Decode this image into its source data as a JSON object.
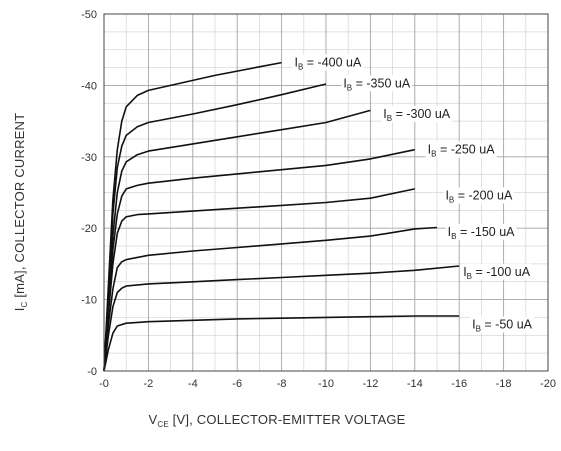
{
  "chart_data": {
    "type": "line",
    "xlabel": {
      "main": "V",
      "sub": "CE",
      "rest": " [V], COLLECTOR-EMITTER VOLTAGE"
    },
    "ylabel": {
      "main": "I",
      "sub": "C",
      "rest": " [mA], COLLECTOR CURRENT"
    },
    "xlim": [
      0,
      -20
    ],
    "ylim": [
      0,
      -50
    ],
    "x_ticks": [
      "-0",
      "-2",
      "-4",
      "-6",
      "-8",
      "-10",
      "-12",
      "-14",
      "-16",
      "-18",
      "-20"
    ],
    "y_ticks": [
      "-0",
      "-10",
      "-20",
      "-30",
      "-40",
      "-50"
    ],
    "grid": true,
    "series": [
      {
        "name": "I_B = -400 uA",
        "label_prefix": "I",
        "label_sub": "B",
        "label_rest": " = -400 uA",
        "label_at": [
          -8.4,
          -43.2
        ],
        "points": [
          [
            0,
            0
          ],
          [
            -0.2,
            -12
          ],
          [
            -0.4,
            -24
          ],
          [
            -0.6,
            -31
          ],
          [
            -0.8,
            -35
          ],
          [
            -1,
            -37
          ],
          [
            -1.5,
            -38.6
          ],
          [
            -2,
            -39.3
          ],
          [
            -3,
            -40
          ],
          [
            -4,
            -40.7
          ],
          [
            -5,
            -41.4
          ],
          [
            -6,
            -42
          ],
          [
            -7,
            -42.6
          ],
          [
            -8,
            -43.2
          ]
        ]
      },
      {
        "name": "I_B = -350 uA",
        "label_prefix": "I",
        "label_sub": "B",
        "label_rest": " = -350 uA",
        "label_at": [
          -10.6,
          -40.3
        ],
        "points": [
          [
            0,
            0
          ],
          [
            -0.2,
            -11
          ],
          [
            -0.4,
            -22
          ],
          [
            -0.6,
            -28.5
          ],
          [
            -0.8,
            -31.5
          ],
          [
            -1,
            -33
          ],
          [
            -1.5,
            -34.2
          ],
          [
            -2,
            -34.8
          ],
          [
            -4,
            -36
          ],
          [
            -6,
            -37.3
          ],
          [
            -8,
            -38.7
          ],
          [
            -10,
            -40.2
          ]
        ]
      },
      {
        "name": "I_B = -300 uA",
        "label_prefix": "I",
        "label_sub": "B",
        "label_rest": " = -300 uA",
        "label_at": [
          -12.4,
          -36.0
        ],
        "points": [
          [
            0,
            0
          ],
          [
            -0.2,
            -10
          ],
          [
            -0.4,
            -19
          ],
          [
            -0.6,
            -25
          ],
          [
            -0.8,
            -28
          ],
          [
            -1,
            -29.3
          ],
          [
            -1.5,
            -30.3
          ],
          [
            -2,
            -30.8
          ],
          [
            -4,
            -31.8
          ],
          [
            -6,
            -32.8
          ],
          [
            -8,
            -33.8
          ],
          [
            -10,
            -34.8
          ],
          [
            -12,
            -36.5
          ]
        ]
      },
      {
        "name": "I_B = -250 uA",
        "label_prefix": "I",
        "label_sub": "B",
        "label_rest": " = -250 uA",
        "label_at": [
          -14.4,
          -31.0
        ],
        "points": [
          [
            0,
            0
          ],
          [
            -0.2,
            -9
          ],
          [
            -0.4,
            -17
          ],
          [
            -0.6,
            -22
          ],
          [
            -0.8,
            -24.5
          ],
          [
            -1,
            -25.5
          ],
          [
            -1.5,
            -26
          ],
          [
            -2,
            -26.3
          ],
          [
            -4,
            -27
          ],
          [
            -6,
            -27.6
          ],
          [
            -8,
            -28.2
          ],
          [
            -10,
            -28.8
          ],
          [
            -12,
            -29.7
          ],
          [
            -14,
            -31
          ]
        ]
      },
      {
        "name": "I_B = -200 uA",
        "label_prefix": "I",
        "label_sub": "B",
        "label_rest": " = -200 uA",
        "label_at": [
          -15.2,
          -24.6
        ],
        "points": [
          [
            0,
            0
          ],
          [
            -0.2,
            -8
          ],
          [
            -0.4,
            -15
          ],
          [
            -0.6,
            -19.3
          ],
          [
            -0.8,
            -21
          ],
          [
            -1,
            -21.6
          ],
          [
            -1.5,
            -21.9
          ],
          [
            -2,
            -22
          ],
          [
            -4,
            -22.4
          ],
          [
            -6,
            -22.8
          ],
          [
            -8,
            -23.2
          ],
          [
            -10,
            -23.6
          ],
          [
            -12,
            -24.2
          ],
          [
            -14,
            -25.5
          ]
        ]
      },
      {
        "name": "I_B = -150 uA",
        "label_prefix": "I",
        "label_sub": "B",
        "label_rest": " = -150 uA",
        "label_at": [
          -15.3,
          -19.5
        ],
        "points": [
          [
            0,
            0
          ],
          [
            -0.2,
            -6.5
          ],
          [
            -0.4,
            -11.5
          ],
          [
            -0.6,
            -14.5
          ],
          [
            -0.8,
            -15.3
          ],
          [
            -1,
            -15.6
          ],
          [
            -2,
            -16.2
          ],
          [
            -4,
            -16.8
          ],
          [
            -6,
            -17.3
          ],
          [
            -8,
            -17.8
          ],
          [
            -10,
            -18.3
          ],
          [
            -12,
            -18.9
          ],
          [
            -14,
            -19.9
          ],
          [
            -15,
            -20.1
          ]
        ]
      },
      {
        "name": "I_B = -100 uA",
        "label_prefix": "I",
        "label_sub": "B",
        "label_rest": " = -100 uA",
        "label_at": [
          -16.0,
          -13.9
        ],
        "points": [
          [
            0,
            0
          ],
          [
            -0.2,
            -5
          ],
          [
            -0.4,
            -9
          ],
          [
            -0.6,
            -11
          ],
          [
            -0.8,
            -11.6
          ],
          [
            -1,
            -11.9
          ],
          [
            -2,
            -12.2
          ],
          [
            -4,
            -12.5
          ],
          [
            -6,
            -12.8
          ],
          [
            -8,
            -13.1
          ],
          [
            -10,
            -13.4
          ],
          [
            -12,
            -13.7
          ],
          [
            -14,
            -14.1
          ],
          [
            -16,
            -14.7
          ]
        ]
      },
      {
        "name": "I_B = -50 uA",
        "label_prefix": "I",
        "label_sub": "B",
        "label_rest": " = -50 uA",
        "label_at": [
          -16.4,
          -6.5
        ],
        "points": [
          [
            0,
            0
          ],
          [
            -0.2,
            -3
          ],
          [
            -0.4,
            -5.3
          ],
          [
            -0.6,
            -6.3
          ],
          [
            -1,
            -6.7
          ],
          [
            -2,
            -6.9
          ],
          [
            -4,
            -7.1
          ],
          [
            -6,
            -7.3
          ],
          [
            -8,
            -7.4
          ],
          [
            -10,
            -7.5
          ],
          [
            -12,
            -7.6
          ],
          [
            -14,
            -7.7
          ],
          [
            -16,
            -7.7
          ]
        ]
      }
    ]
  }
}
